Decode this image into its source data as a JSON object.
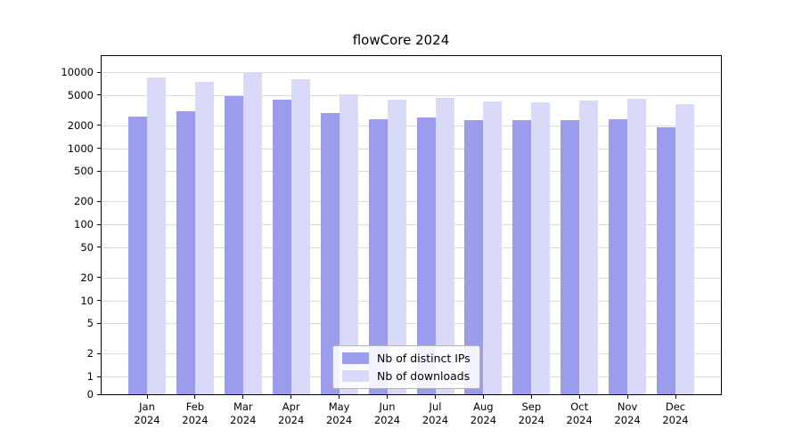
{
  "title": "flowCore 2024",
  "chart_data": {
    "type": "bar",
    "title": "flowCore 2024",
    "scale": "log",
    "grid": "horizontal",
    "legend_position": "bottom-center-inside",
    "categories": [
      "Jan 2024",
      "Feb 2024",
      "Mar 2024",
      "Apr 2024",
      "May 2024",
      "Jun 2024",
      "Jul 2024",
      "Aug 2024",
      "Sep 2024",
      "Oct 2024",
      "Nov 2024",
      "Dec 2024"
    ],
    "series": [
      {
        "name": "Nb of distinct IPs",
        "color": "#9c9cec",
        "values": [
          2600,
          3100,
          4800,
          4300,
          2900,
          2400,
          2550,
          2350,
          2350,
          2350,
          2400,
          1900
        ]
      },
      {
        "name": "Nb of downloads",
        "color": "#d9d9f8",
        "values": [
          8500,
          7400,
          10000,
          8000,
          5100,
          4300,
          4600,
          4100,
          4000,
          4200,
          4500,
          3800
        ]
      }
    ],
    "yticks": [
      0,
      1,
      2,
      5,
      10,
      20,
      50,
      100,
      200,
      500,
      1000,
      2000,
      5000,
      10000
    ],
    "ylim": [
      0,
      10000
    ]
  }
}
